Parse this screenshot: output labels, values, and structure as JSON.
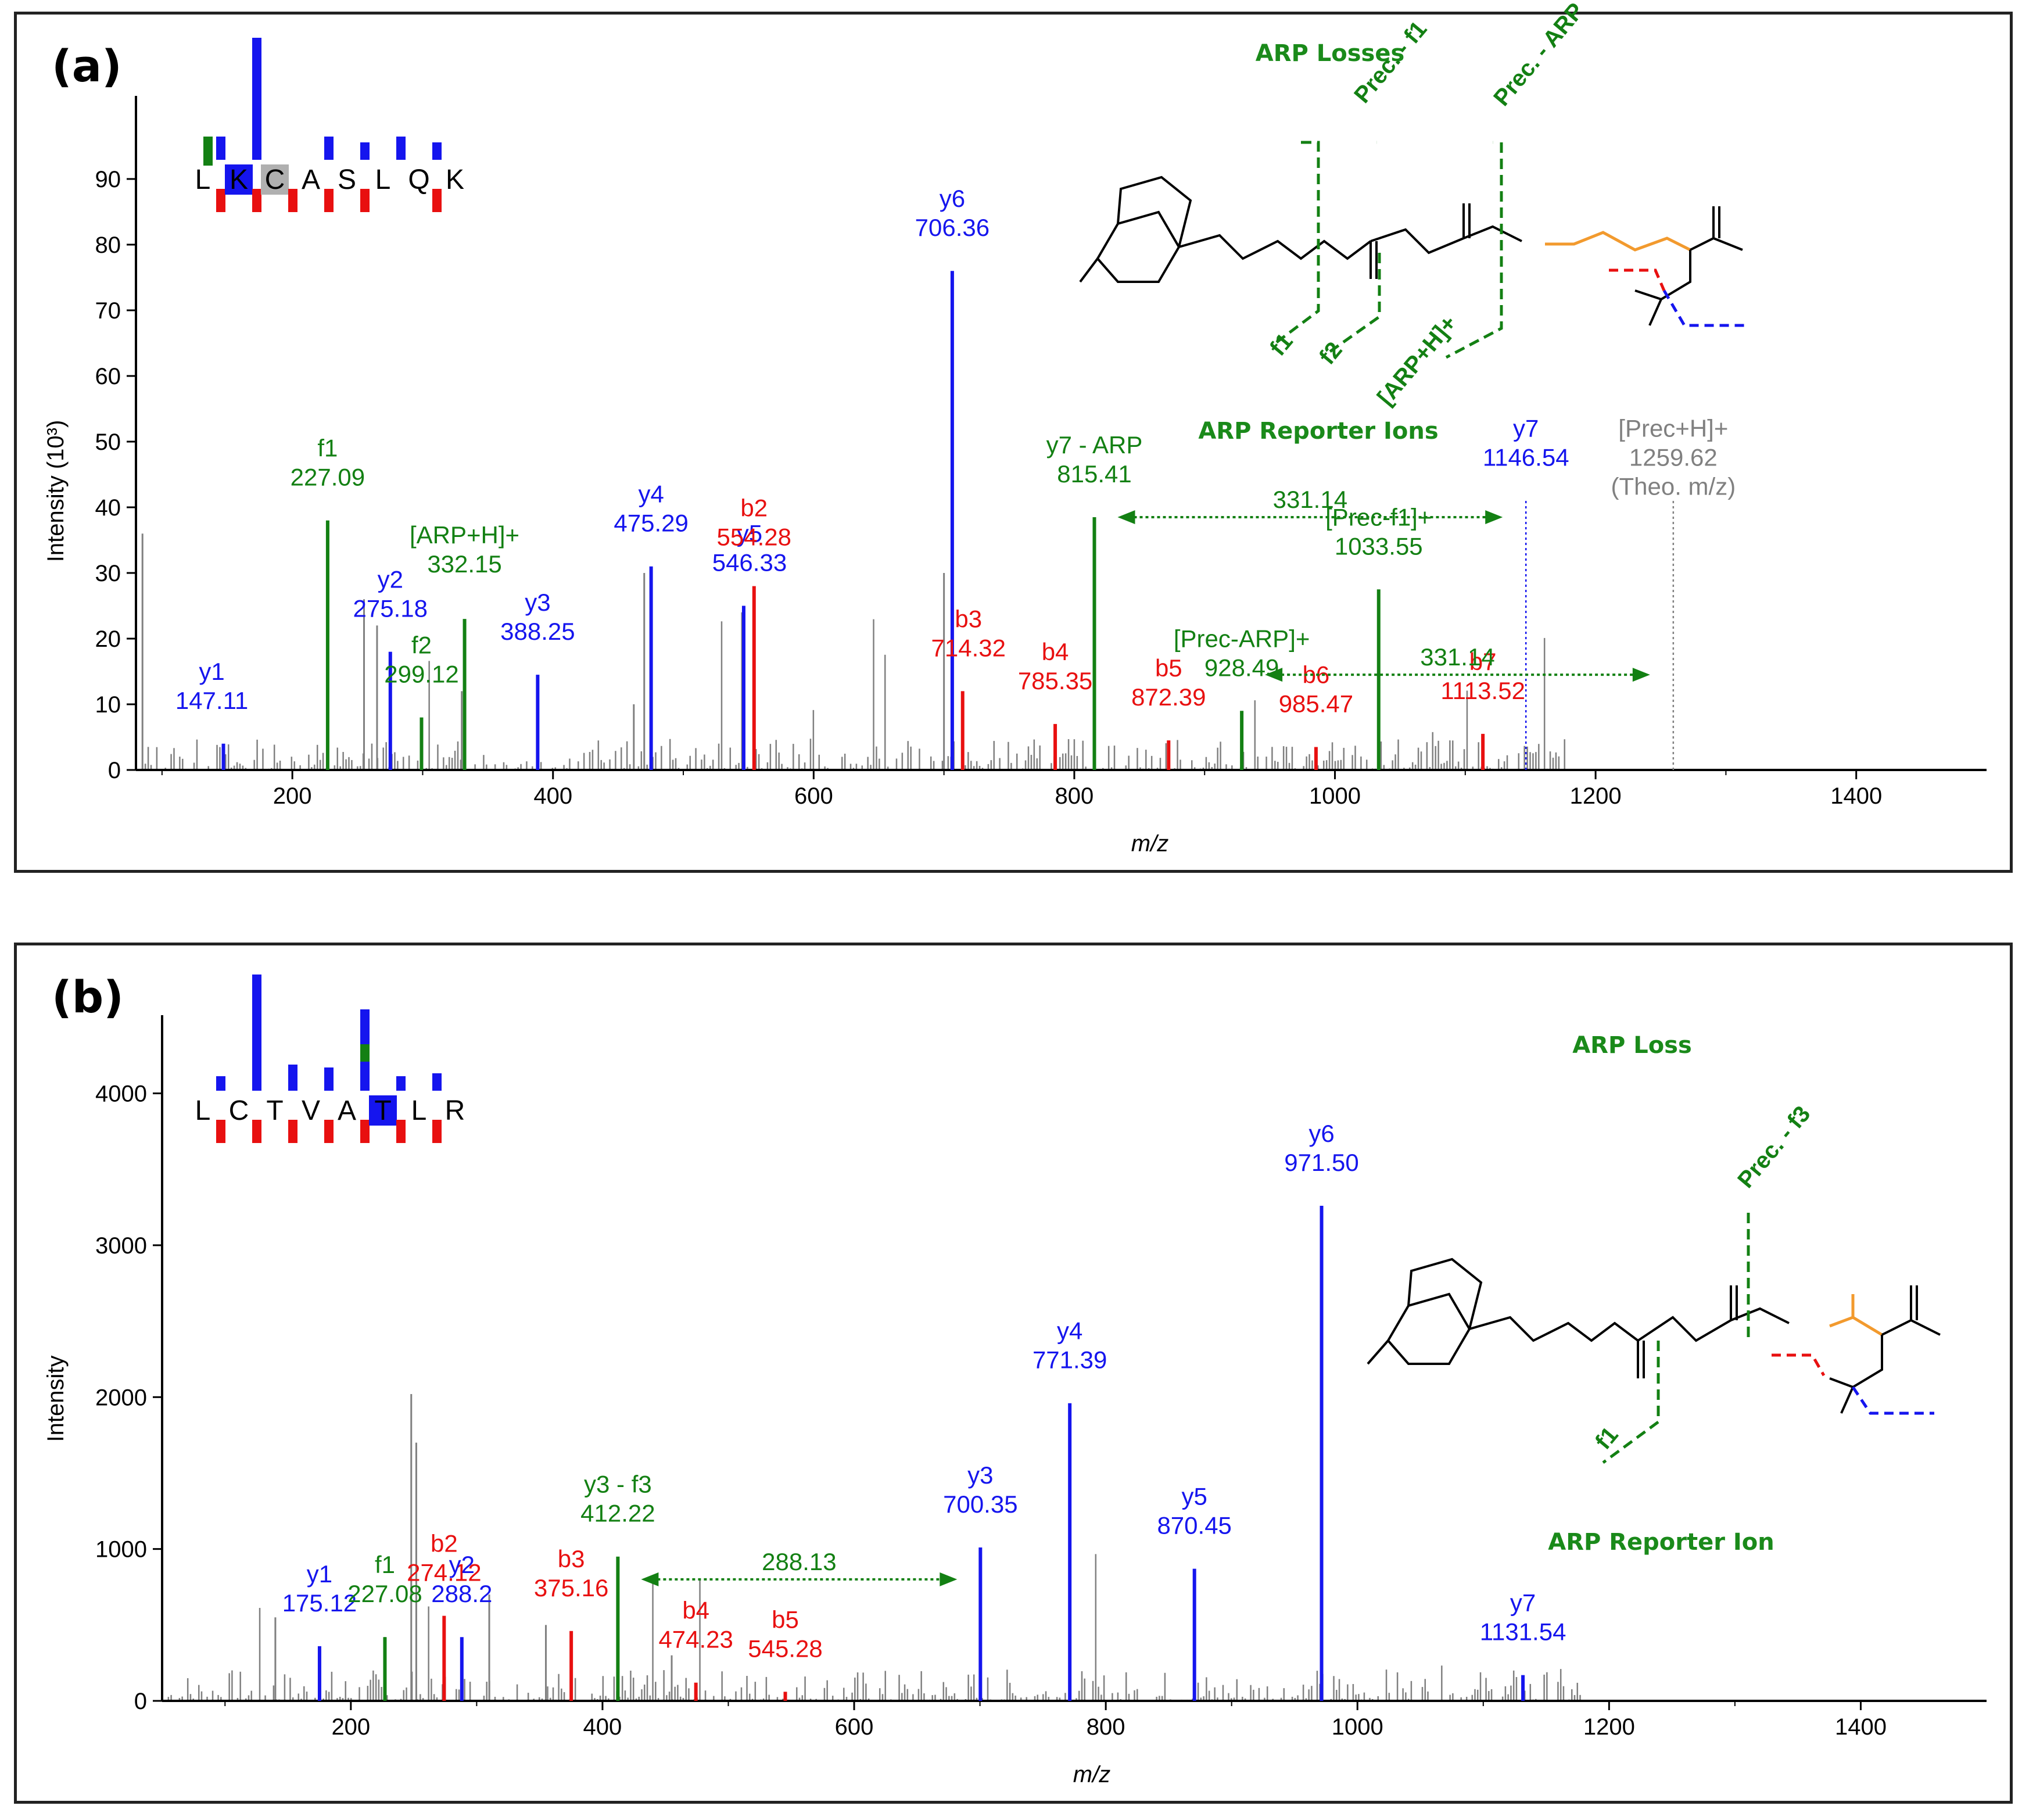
{
  "colors": {
    "y_ion": "#1515ee",
    "b_ion": "#e81010",
    "arp": "#138013",
    "noise": "#808080",
    "title": "#1a8a1a",
    "alkyl": "#f29a2e"
  },
  "chart_data": [
    {
      "type": "bar",
      "panel_label": "(a)",
      "xlabel": "m/z",
      "ylabel": "Intensity (10³)",
      "xlim": [
        80,
        1500
      ],
      "ylim": [
        0,
        100
      ],
      "xticks": [
        200,
        400,
        600,
        800,
        1000,
        1200,
        1400
      ],
      "yticks": [
        0,
        10,
        20,
        30,
        40,
        50,
        60,
        70,
        80,
        90
      ],
      "sequence": [
        "L",
        "K",
        "C",
        "A",
        "S",
        "L",
        "Q",
        "K"
      ],
      "sequence_highlight": {
        "K": "blue",
        "C": "gray"
      },
      "peaks": [
        {
          "name": "y1",
          "mz": "147.11",
          "x": 147.11,
          "y": 4,
          "ion": "y"
        },
        {
          "name": "f1",
          "mz": "227.09",
          "x": 227.09,
          "y": 38,
          "ion": "arp"
        },
        {
          "name": "y2",
          "mz": "275.18",
          "x": 275.18,
          "y": 18,
          "ion": "y"
        },
        {
          "name": "f2",
          "mz": "299.12",
          "x": 299.12,
          "y": 8,
          "ion": "arp"
        },
        {
          "name": "[ARP+H]+",
          "mz": "332.15",
          "x": 332.15,
          "y": 23,
          "ion": "arp"
        },
        {
          "name": "y3",
          "mz": "388.25",
          "x": 388.25,
          "y": 14.5,
          "ion": "y"
        },
        {
          "name": "y4",
          "mz": "475.29",
          "x": 475.29,
          "y": 31,
          "ion": "y"
        },
        {
          "name": "y5",
          "mz": "546.33",
          "x": 546.33,
          "y": 25,
          "ion": "y"
        },
        {
          "name": "b2",
          "mz": "554.28",
          "x": 554.28,
          "y": 28,
          "ion": "b"
        },
        {
          "name": "y6",
          "mz": "706.36",
          "x": 706.36,
          "y": 76,
          "ion": "y"
        },
        {
          "name": "b3",
          "mz": "714.32",
          "x": 714.32,
          "y": 12,
          "ion": "b"
        },
        {
          "name": "b4",
          "mz": "785.35",
          "x": 785.35,
          "y": 7,
          "ion": "b"
        },
        {
          "name": "y7 - ARP",
          "mz": "815.41",
          "x": 815.41,
          "y": 38.5,
          "ion": "arp"
        },
        {
          "name": "b5",
          "mz": "872.39",
          "x": 872.39,
          "y": 4.5,
          "ion": "b"
        },
        {
          "name": "[Prec-ARP]+",
          "mz": "928.49",
          "x": 928.49,
          "y": 9,
          "ion": "arp"
        },
        {
          "name": "b6",
          "mz": "985.47",
          "x": 985.47,
          "y": 3.5,
          "ion": "b"
        },
        {
          "name": "[Prec-f1]+",
          "mz": "1033.55",
          "x": 1033.55,
          "y": 27.5,
          "ion": "arp"
        },
        {
          "name": "b7",
          "mz": "1113.52",
          "x": 1113.52,
          "y": 5.5,
          "ion": "b"
        },
        {
          "name": "y7",
          "mz": "1146.54",
          "x": 1146.54,
          "y": 41,
          "ion": "y_dotted"
        },
        {
          "name": "[Prec+H]+",
          "mz": "1259.62",
          "x": 1259.62,
          "y": 41,
          "ion": "prec"
        }
      ],
      "prec_note": "(Theo. m/z)",
      "annotations": [
        {
          "text": "331.14",
          "from": 815.41,
          "to": 1146.54,
          "y": 38.5
        },
        {
          "text": "331.14",
          "from": 928.49,
          "to": 1259.62,
          "y": 14.5
        }
      ],
      "structure_titles": {
        "top": "ARP Losses",
        "bottom": "ARP Reporter Ions"
      },
      "structure_labels": [
        "Prec. - f1",
        "Prec. - ARP",
        "f1",
        "f2",
        "[ARP+H]+"
      ]
    },
    {
      "type": "bar",
      "panel_label": "(b)",
      "xlabel": "m/z",
      "ylabel": "Intensity",
      "xlim": [
        50,
        1500
      ],
      "ylim": [
        0,
        4400
      ],
      "xticks": [
        200,
        400,
        600,
        800,
        1000,
        1200,
        1400
      ],
      "yticks": [
        0,
        1000,
        2000,
        3000,
        4000
      ],
      "sequence": [
        "L",
        "C",
        "T",
        "V",
        "A",
        "T",
        "L",
        "R"
      ],
      "sequence_highlight": {
        "T": "blue"
      },
      "peaks": [
        {
          "name": "y1",
          "mz": "175.12",
          "x": 175.12,
          "y": 360,
          "ion": "y"
        },
        {
          "name": "f1",
          "mz": "227.08",
          "x": 227.08,
          "y": 420,
          "ion": "arp"
        },
        {
          "name": "b2",
          "mz": "274.12",
          "x": 274.12,
          "y": 560,
          "ion": "b"
        },
        {
          "name": "y2",
          "mz": "288.2",
          "x": 288.2,
          "y": 420,
          "ion": "y"
        },
        {
          "name": "b3",
          "mz": "375.16",
          "x": 375.16,
          "y": 460,
          "ion": "b"
        },
        {
          "name": "y3 - f3",
          "mz": "412.22",
          "x": 412.22,
          "y": 950,
          "ion": "arp"
        },
        {
          "name": "b4",
          "mz": "474.23",
          "x": 474.23,
          "y": 120,
          "ion": "b"
        },
        {
          "name": "b5",
          "mz": "545.28",
          "x": 545.28,
          "y": 60,
          "ion": "b"
        },
        {
          "name": "y3",
          "mz": "700.35",
          "x": 700.35,
          "y": 1010,
          "ion": "y"
        },
        {
          "name": "y4",
          "mz": "771.39",
          "x": 771.39,
          "y": 1960,
          "ion": "y"
        },
        {
          "name": "y5",
          "mz": "870.45",
          "x": 870.45,
          "y": 870,
          "ion": "y"
        },
        {
          "name": "y6",
          "mz": "971.50",
          "x": 971.5,
          "y": 3260,
          "ion": "y"
        },
        {
          "name": "y7",
          "mz": "1131.54",
          "x": 1131.54,
          "y": 170,
          "ion": "y"
        }
      ],
      "annotations": [
        {
          "text": "288.13",
          "from": 412.22,
          "to": 700.35,
          "y": 800
        }
      ],
      "structure_titles": {
        "top": "ARP Loss",
        "bottom": "ARP Reporter Ion"
      },
      "structure_labels": [
        "Prec. - f3",
        "f1"
      ]
    }
  ]
}
